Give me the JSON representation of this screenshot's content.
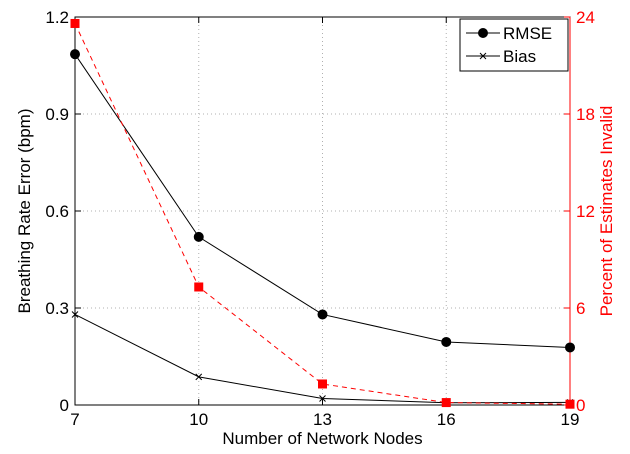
{
  "chart_data": {
    "type": "line",
    "title": "",
    "xlabel": "Number of Network Nodes",
    "ylabel_left": "Breathing Rate Error (bpm)",
    "ylabel_right": "Percent of Estimates Invalid",
    "x": [
      7,
      10,
      13,
      16,
      19
    ],
    "x_ticks": [
      "7",
      "10",
      "13",
      "16",
      "19"
    ],
    "xlim": [
      7,
      19
    ],
    "ylim_left": [
      0,
      1.2
    ],
    "y_ticks_left": [
      "0",
      "0.3",
      "0.6",
      "0.9",
      "1.2"
    ],
    "ylim_right": [
      0,
      24
    ],
    "y_ticks_right": [
      "0",
      "6",
      "12",
      "18",
      "24"
    ],
    "grid": true,
    "legend_position": "top-right",
    "right_axis_color": "#ff0000",
    "series": [
      {
        "name": "RMSE",
        "axis": "left",
        "color": "#000000",
        "marker": "circle",
        "dash": "solid",
        "values": [
          1.085,
          0.52,
          0.28,
          0.195,
          0.178
        ]
      },
      {
        "name": "Bias",
        "axis": "left",
        "color": "#000000",
        "marker": "x",
        "dash": "solid",
        "values": [
          0.28,
          0.087,
          0.02,
          0.007,
          0.008
        ]
      },
      {
        "name": "",
        "axis": "right",
        "color": "#ff0000",
        "marker": "square",
        "dash": "dashed",
        "values": [
          23.6,
          7.3,
          1.3,
          0.15,
          0.05
        ]
      }
    ]
  }
}
